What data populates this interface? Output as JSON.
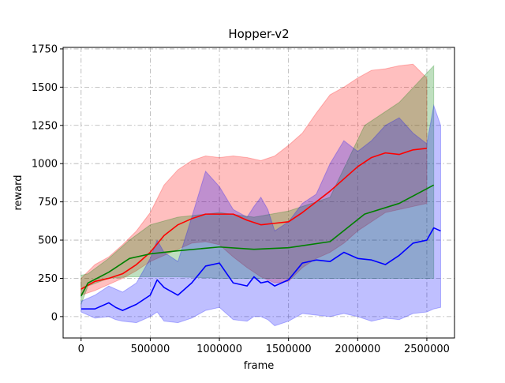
{
  "chart_data": {
    "type": "line",
    "title": "Hopper-v2",
    "xlabel": "frame",
    "ylabel": "reward",
    "xlim": [
      -130000,
      2700000
    ],
    "ylim": [
      -140,
      1760
    ],
    "xticks": [
      0,
      500000,
      1000000,
      1500000,
      2000000,
      2500000
    ],
    "xtick_labels": [
      "0",
      "500000",
      "1000000",
      "1500000",
      "2000000",
      "2500000"
    ],
    "yticks": [
      0,
      250,
      500,
      750,
      1000,
      1250,
      1500,
      1750
    ],
    "ytick_labels": [
      "0",
      "250",
      "500",
      "750",
      "1000",
      "1250",
      "1500",
      "1750"
    ],
    "grid": true,
    "series": [
      {
        "color": "#ff0000",
        "band_color": "#ff0000",
        "x": [
          0,
          100000,
          200000,
          300000,
          400000,
          500000,
          600000,
          700000,
          800000,
          900000,
          1000000,
          1100000,
          1200000,
          1300000,
          1400000,
          1500000,
          1600000,
          1700000,
          1800000,
          1900000,
          2000000,
          2100000,
          2200000,
          2300000,
          2400000,
          2500000
        ],
        "y": [
          180,
          230,
          250,
          280,
          340,
          420,
          530,
          600,
          640,
          670,
          670,
          670,
          630,
          600,
          610,
          620,
          680,
          750,
          820,
          900,
          980,
          1040,
          1070,
          1060,
          1090,
          1100
        ],
        "upper": [
          250,
          340,
          390,
          470,
          560,
          680,
          860,
          960,
          1020,
          1050,
          1040,
          1050,
          1040,
          1020,
          1050,
          1120,
          1200,
          1330,
          1450,
          1500,
          1560,
          1610,
          1620,
          1640,
          1650,
          1560
        ],
        "lower": [
          140,
          170,
          210,
          250,
          300,
          360,
          400,
          440,
          480,
          490,
          470,
          390,
          320,
          260,
          220,
          230,
          320,
          380,
          420,
          480,
          560,
          620,
          680,
          700,
          720,
          740
        ]
      },
      {
        "color": "#008000",
        "band_color": "#008000",
        "x": [
          0,
          50000,
          200000,
          350000,
          500000,
          700000,
          1000000,
          1250000,
          1500000,
          1800000,
          2050000,
          2300000,
          2550000
        ],
        "y": [
          135,
          220,
          290,
          380,
          410,
          430,
          455,
          440,
          450,
          490,
          670,
          740,
          860
        ],
        "upper": [
          270,
          280,
          380,
          500,
          600,
          650,
          680,
          650,
          690,
          780,
          1250,
          1400,
          1640
        ],
        "lower": [
          80,
          200,
          250,
          260,
          260,
          260,
          250,
          250,
          250,
          250,
          250,
          250,
          250
        ]
      },
      {
        "color": "#0000ff",
        "band_color": "#0000ff",
        "x": [
          0,
          100000,
          200000,
          250000,
          300000,
          400000,
          500000,
          550000,
          600000,
          700000,
          800000,
          900000,
          1000000,
          1100000,
          1200000,
          1250000,
          1300000,
          1350000,
          1400000,
          1500000,
          1600000,
          1700000,
          1800000,
          1900000,
          2000000,
          2100000,
          2200000,
          2300000,
          2400000,
          2500000,
          2550000,
          2600000
        ],
        "y": [
          50,
          50,
          90,
          60,
          40,
          80,
          140,
          240,
          190,
          140,
          220,
          330,
          350,
          220,
          200,
          260,
          220,
          230,
          200,
          240,
          350,
          370,
          360,
          420,
          380,
          370,
          340,
          400,
          480,
          500,
          580,
          560
        ],
        "upper": [
          100,
          140,
          200,
          180,
          160,
          220,
          380,
          500,
          420,
          360,
          650,
          950,
          850,
          700,
          650,
          720,
          780,
          700,
          560,
          620,
          740,
          800,
          1000,
          1150,
          1080,
          1150,
          1250,
          1300,
          1200,
          1130,
          1380,
          1250
        ],
        "lower": [
          30,
          -10,
          0,
          -20,
          -30,
          -40,
          0,
          30,
          -30,
          -40,
          -10,
          40,
          60,
          -20,
          -30,
          0,
          0,
          -20,
          -60,
          -30,
          20,
          10,
          0,
          20,
          0,
          -30,
          -10,
          -20,
          20,
          30,
          50,
          60
        ]
      }
    ]
  }
}
